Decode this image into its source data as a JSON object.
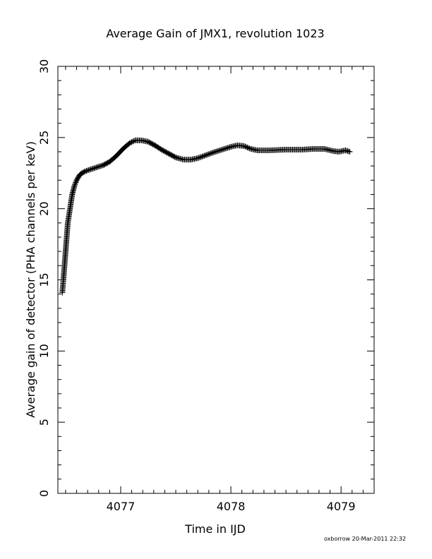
{
  "chart_data": {
    "type": "scatter",
    "title": "Average Gain of JMX1, revolution 1023",
    "xlabel": "Time in IJD",
    "ylabel": "Average gain of detector (PHA channels per keV)",
    "xlim": [
      4076.43,
      4079.3
    ],
    "ylim": [
      0,
      30
    ],
    "x_ticks": [
      4077,
      4078,
      4079
    ],
    "x_minor_step": 0.1,
    "y_ticks": [
      0,
      5,
      10,
      15,
      20,
      25,
      30
    ],
    "y_minor_step": 1,
    "grid": false,
    "marker": "plus",
    "series": [
      {
        "points": [
          [
            4076.47,
            14.1
          ],
          [
            4076.48,
            15.0
          ],
          [
            4076.49,
            16.0
          ],
          [
            4076.5,
            17.0
          ],
          [
            4076.51,
            18.0
          ],
          [
            4076.52,
            19.0
          ],
          [
            4076.54,
            20.0
          ],
          [
            4076.56,
            21.0
          ],
          [
            4076.58,
            21.6
          ],
          [
            4076.6,
            22.0
          ],
          [
            4076.63,
            22.4
          ],
          [
            4076.67,
            22.6
          ],
          [
            4076.72,
            22.75
          ],
          [
            4076.78,
            22.9
          ],
          [
            4076.84,
            23.05
          ],
          [
            4076.9,
            23.3
          ],
          [
            4076.96,
            23.7
          ],
          [
            4077.02,
            24.2
          ],
          [
            4077.08,
            24.6
          ],
          [
            4077.13,
            24.8
          ],
          [
            4077.19,
            24.8
          ],
          [
            4077.25,
            24.7
          ],
          [
            4077.31,
            24.45
          ],
          [
            4077.37,
            24.15
          ],
          [
            4077.44,
            23.85
          ],
          [
            4077.5,
            23.6
          ],
          [
            4077.57,
            23.45
          ],
          [
            4077.64,
            23.45
          ],
          [
            4077.7,
            23.55
          ],
          [
            4077.77,
            23.75
          ],
          [
            4077.84,
            23.95
          ],
          [
            4077.92,
            24.15
          ],
          [
            4078.0,
            24.35
          ],
          [
            4078.06,
            24.45
          ],
          [
            4078.12,
            24.4
          ],
          [
            4078.18,
            24.2
          ],
          [
            4078.24,
            24.1
          ],
          [
            4078.35,
            24.1
          ],
          [
            4078.5,
            24.15
          ],
          [
            4078.65,
            24.15
          ],
          [
            4078.75,
            24.2
          ],
          [
            4078.85,
            24.2
          ],
          [
            4078.93,
            24.05
          ],
          [
            4078.98,
            24.0
          ],
          [
            4079.04,
            24.1
          ],
          [
            4079.08,
            24.0
          ]
        ]
      }
    ]
  },
  "footer": "oxborrow 20-Mar-2011 22:32"
}
